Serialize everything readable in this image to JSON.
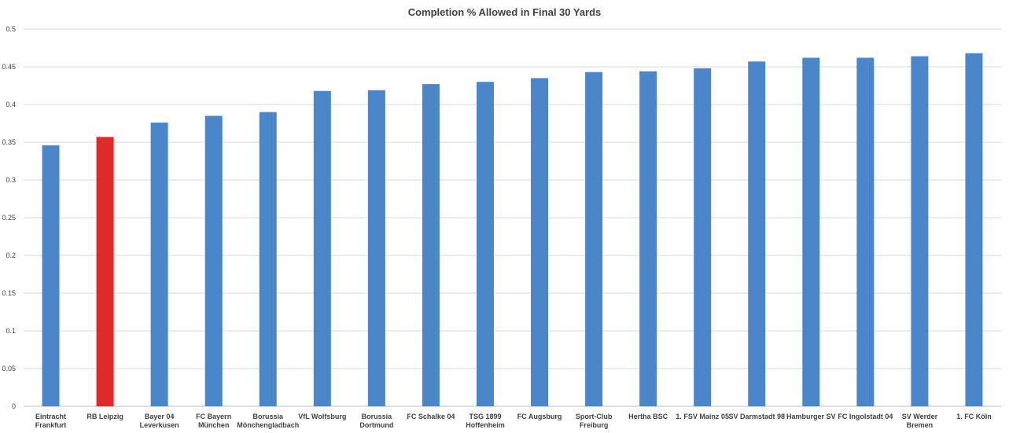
{
  "chart_data": {
    "type": "bar",
    "title": "Completion % Allowed in Final 30 Yards",
    "xlabel": "",
    "ylabel": "",
    "ylim": [
      0,
      0.5
    ],
    "yticks": [
      "0",
      "0.05",
      "0.1",
      "0.15",
      "0.2",
      "0.25",
      "0.3",
      "0.35",
      "0.4",
      "0.45",
      "0.5"
    ],
    "grid": true,
    "legend": "none",
    "categories": [
      [
        "Eintracht",
        "Frankfurt"
      ],
      [
        "RB Leipzig"
      ],
      [
        "Bayer 04",
        "Leverkusen"
      ],
      [
        "FC Bayern",
        "München"
      ],
      [
        "Borussia",
        "Mönchengladbach"
      ],
      [
        "VfL Wolfsburg"
      ],
      [
        "Borussia",
        "Dortmund"
      ],
      [
        "FC Schalke 04"
      ],
      [
        "TSG 1899",
        "Hoffenheim"
      ],
      [
        "FC Augsburg"
      ],
      [
        "Sport-Club",
        "Freiburg"
      ],
      [
        "Hertha BSC"
      ],
      [
        "1. FSV Mainz 05"
      ],
      [
        "SV Darmstadt 98"
      ],
      [
        "Hamburger SV"
      ],
      [
        "FC Ingolstadt 04"
      ],
      [
        "SV Werder",
        "Bremen"
      ],
      [
        "1. FC Köln"
      ]
    ],
    "values": [
      0.346,
      0.357,
      0.376,
      0.385,
      0.39,
      0.418,
      0.419,
      0.427,
      0.43,
      0.435,
      0.443,
      0.444,
      0.448,
      0.457,
      0.462,
      0.462,
      0.464,
      0.468
    ],
    "colors": {
      "default": "#4a86c8",
      "highlight": "#e0292b",
      "grid": "#d9d9d9",
      "axis": "#bfbfbf"
    },
    "highlight_index": 1
  }
}
